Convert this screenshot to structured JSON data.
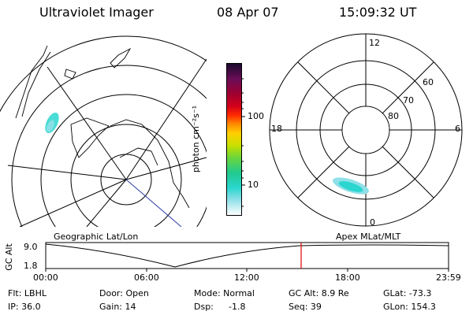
{
  "header": {
    "instrument": "Ultraviolet Imager",
    "date": "08 Apr 07",
    "time": "15:09:32 UT"
  },
  "colorbar": {
    "unit_label": "photon cm⁻²s⁻¹",
    "tick_labels": [
      "100",
      "10"
    ],
    "colors": [
      "#1a0a2e",
      "#6a0d57",
      "#a00030",
      "#d2001a",
      "#ff2a00",
      "#ff8c00",
      "#ffcf00",
      "#c8e000",
      "#6cd63a",
      "#22c98e",
      "#2ad6cf",
      "#8fe0e8",
      "#ffffff"
    ]
  },
  "geo_map": {
    "label": "Geographic Lat/Lon"
  },
  "polar_map": {
    "label": "Apex MLat/MLT",
    "mlt_labels": [
      "12",
      "18",
      "6",
      "0"
    ],
    "lat_labels": [
      "60",
      "70",
      "80"
    ]
  },
  "altitude_plot": {
    "ylabel": "GC Alt",
    "yticks": [
      "9.0",
      "1.8"
    ],
    "xticks": [
      "00:00",
      "06:00",
      "12:00",
      "18:00",
      "23:59"
    ],
    "current_marker": "15:09"
  },
  "info": {
    "flt": "Flt: LBHL",
    "ip": "IP: 36.0",
    "door": "Door: Open",
    "gain": "Gain: 14",
    "mode": "Mode: Normal",
    "dsp": "Dsp:",
    "dsp_value": "-1.8",
    "gcalt": "GC Alt: 8.9 Re",
    "seq": "Seq: 39",
    "glat": "GLat: -73.3",
    "glon": "GLon: 154.3"
  }
}
